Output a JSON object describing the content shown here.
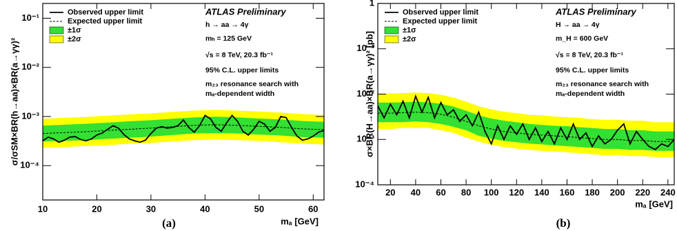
{
  "chart_data": [
    {
      "type": "line",
      "ylog": true,
      "xlim": [
        10,
        62
      ],
      "ylim": [
        2e-05,
        0.2
      ],
      "xticks": [
        10,
        20,
        30,
        40,
        50,
        60
      ],
      "yticks": [
        {
          "value": 0.0001,
          "label": "10⁻⁴"
        },
        {
          "value": 0.001,
          "label": "10⁻³"
        },
        {
          "value": 0.01,
          "label": "10⁻²"
        },
        {
          "value": 0.1,
          "label": "10⁻¹"
        }
      ],
      "xlabel": "mₐ [GeV]",
      "ylabel": "σ/σSM×BR(h→aa)×BR(a→γγ)²",
      "experiment": "ATLAS Preliminary",
      "annotations": [
        "h → aa → 4γ",
        "mₕ = 125 GeV",
        "√s = 8 TeV, 20.3 fb⁻¹",
        "95% C.L. upper limits",
        "m₂₃ resonance search with",
        "mₐ-dependent width"
      ],
      "caption": "(a)",
      "series": [
        {
          "name": "Observed upper limit",
          "style": "solid",
          "color": "#000000",
          "x": [
            10,
            11,
            12,
            13,
            14,
            15,
            16,
            17,
            18,
            19,
            20,
            21,
            22,
            23,
            24,
            25,
            26,
            27,
            28,
            29,
            30,
            31,
            32,
            33,
            34,
            35,
            36,
            37,
            38,
            39,
            40,
            41,
            42,
            43,
            44,
            45,
            46,
            47,
            48,
            49,
            50,
            51,
            52,
            53,
            54,
            55,
            56,
            57,
            58,
            59,
            60,
            61,
            62
          ],
          "values": [
            0.00032,
            0.00038,
            0.00035,
            0.0003,
            0.00033,
            0.00038,
            0.00039,
            0.00034,
            0.00032,
            0.00035,
            0.00042,
            0.00046,
            0.00055,
            0.00065,
            0.00058,
            0.00043,
            0.00035,
            0.00032,
            0.0003,
            0.00033,
            0.00045,
            0.00058,
            0.00062,
            0.00058,
            0.0006,
            0.00065,
            0.00085,
            0.0006,
            0.00048,
            0.00065,
            0.00105,
            0.0009,
            0.0006,
            0.0005,
            0.00075,
            0.00105,
            0.0008,
            0.0005,
            0.00042,
            0.00055,
            0.0008,
            0.0007,
            0.0005,
            0.0006,
            0.001,
            0.00095,
            0.0006,
            0.0004,
            0.00033,
            0.00035,
            0.0004,
            0.00048,
            0.00052
          ]
        },
        {
          "name": "Expected upper limit",
          "style": "dashed",
          "color": "#000000",
          "x": [
            10,
            14,
            18,
            22,
            26,
            30,
            34,
            38,
            42,
            46,
            50,
            54,
            58,
            62
          ],
          "values": [
            0.00045,
            0.00047,
            0.00049,
            0.00052,
            0.00055,
            0.00058,
            0.00062,
            0.00066,
            0.00068,
            0.00066,
            0.00063,
            0.0006,
            0.00056,
            0.00054
          ]
        },
        {
          "name": "±1σ",
          "style": "band",
          "color": "#33e033",
          "x": [
            10,
            14,
            18,
            22,
            26,
            30,
            34,
            38,
            42,
            46,
            50,
            54,
            58,
            62
          ],
          "lower": [
            0.00031,
            0.00032,
            0.00033,
            0.00035,
            0.00037,
            0.00039,
            0.00042,
            0.00045,
            0.00046,
            0.00045,
            0.00043,
            0.00041,
            0.00038,
            0.00037
          ],
          "values": [
            0.00065,
            0.00068,
            0.00071,
            0.00075,
            0.0008,
            0.00084,
            0.0009,
            0.00096,
            0.00099,
            0.00096,
            0.00091,
            0.00087,
            0.00081,
            0.00078
          ]
        },
        {
          "name": "±2σ",
          "style": "band",
          "color": "#ffff00",
          "x": [
            10,
            14,
            18,
            22,
            26,
            30,
            34,
            38,
            42,
            46,
            50,
            54,
            58,
            62
          ],
          "lower": [
            0.00023,
            0.00024,
            0.00025,
            0.00026,
            0.00028,
            0.00029,
            0.00031,
            0.00033,
            0.00034,
            0.00033,
            0.00032,
            0.0003,
            0.00028,
            0.00027
          ],
          "values": [
            0.0009,
            0.00094,
            0.00098,
            0.00104,
            0.0011,
            0.00116,
            0.00124,
            0.00132,
            0.00136,
            0.00132,
            0.00126,
            0.0012,
            0.00112,
            0.00108
          ]
        }
      ]
    },
    {
      "type": "line",
      "ylog": true,
      "xlim": [
        10,
        245
      ],
      "ylim": [
        0.0001,
        1
      ],
      "xticks": [
        20,
        40,
        60,
        80,
        100,
        120,
        140,
        160,
        180,
        200,
        220,
        240
      ],
      "yticks": [
        {
          "value": 0.0001,
          "label": "10⁻⁴"
        },
        {
          "value": 0.001,
          "label": "10⁻³"
        },
        {
          "value": 0.01,
          "label": "10⁻²"
        },
        {
          "value": 0.1,
          "label": "10⁻¹"
        },
        1
      ],
      "xlabel": "mₐ [GeV]",
      "ylabel": "σ×BR(H→aa)×BR(a→γγ)² [pb]",
      "experiment": "ATLAS Preliminary",
      "annotations": [
        "H → aa → 4γ",
        "m_H = 600 GeV",
        "√s = 8 TeV, 20.3 fb⁻¹",
        "95% C.L. upper limits",
        "m₂₃ resonance search with",
        "mₐ-dependent width"
      ],
      "caption": "(b)",
      "series": [
        {
          "name": "Observed upper limit",
          "style": "solid",
          "color": "#000000",
          "x": [
            10,
            15,
            20,
            25,
            30,
            35,
            40,
            45,
            50,
            55,
            60,
            65,
            70,
            75,
            80,
            85,
            90,
            95,
            100,
            105,
            110,
            115,
            120,
            125,
            130,
            135,
            140,
            145,
            150,
            155,
            160,
            165,
            170,
            175,
            180,
            185,
            190,
            195,
            200,
            205,
            210,
            215,
            220,
            225,
            230,
            235,
            240,
            245
          ],
          "values": [
            0.0055,
            0.003,
            0.006,
            0.0035,
            0.007,
            0.003,
            0.009,
            0.004,
            0.0085,
            0.003,
            0.0065,
            0.0035,
            0.0045,
            0.0025,
            0.0035,
            0.002,
            0.004,
            0.0015,
            0.0008,
            0.002,
            0.001,
            0.002,
            0.0013,
            0.0022,
            0.001,
            0.0018,
            0.0009,
            0.0015,
            0.0008,
            0.0018,
            0.001,
            0.0022,
            0.001,
            0.0014,
            0.0007,
            0.0012,
            0.0008,
            0.001,
            0.0016,
            0.0022,
            0.0008,
            0.0015,
            0.001,
            0.0007,
            0.0006,
            0.0008,
            0.0007,
            0.001
          ]
        },
        {
          "name": "Expected upper limit",
          "style": "dashed",
          "color": "#000000",
          "x": [
            10,
            20,
            30,
            40,
            50,
            60,
            70,
            80,
            90,
            100,
            110,
            120,
            130,
            140,
            150,
            160,
            170,
            180,
            190,
            200,
            210,
            220,
            230,
            240,
            245
          ],
          "values": [
            0.0038,
            0.0038,
            0.0039,
            0.004,
            0.0039,
            0.0036,
            0.0031,
            0.0025,
            0.002,
            0.0017,
            0.0015,
            0.0014,
            0.0013,
            0.00125,
            0.0012,
            0.00115,
            0.0011,
            0.00105,
            0.001,
            0.001,
            0.00095,
            0.00095,
            0.0009,
            0.0009,
            0.0009
          ]
        },
        {
          "name": "±1σ",
          "style": "band",
          "color": "#33e033",
          "x": [
            10,
            20,
            30,
            40,
            50,
            60,
            70,
            80,
            90,
            100,
            110,
            120,
            130,
            140,
            150,
            160,
            170,
            180,
            190,
            200,
            210,
            220,
            230,
            240,
            245
          ],
          "lower": [
            0.0024,
            0.0024,
            0.0024,
            0.0025,
            0.0024,
            0.0022,
            0.0019,
            0.0016,
            0.0012,
            0.00105,
            0.00093,
            0.00087,
            0.00081,
            0.00078,
            0.00074,
            0.00071,
            0.00068,
            0.00065,
            0.00062,
            0.00062,
            0.00059,
            0.00059,
            0.00056,
            0.00056,
            0.00056
          ],
          "values": [
            0.0065,
            0.0065,
            0.0066,
            0.0068,
            0.0066,
            0.0061,
            0.0053,
            0.0043,
            0.0034,
            0.0029,
            0.0026,
            0.0024,
            0.0022,
            0.0021,
            0.002,
            0.00196,
            0.00187,
            0.00179,
            0.0017,
            0.0017,
            0.0016,
            0.0016,
            0.0015,
            0.0015,
            0.0015
          ]
        },
        {
          "name": "±2σ",
          "style": "band",
          "color": "#ffff00",
          "x": [
            10,
            20,
            30,
            40,
            50,
            60,
            70,
            80,
            90,
            100,
            110,
            120,
            130,
            140,
            150,
            160,
            170,
            180,
            190,
            200,
            210,
            220,
            230,
            240,
            245
          ],
          "lower": [
            0.0017,
            0.0017,
            0.0018,
            0.0018,
            0.0018,
            0.0016,
            0.0014,
            0.0011,
            0.0009,
            0.00077,
            0.00068,
            0.00063,
            0.00059,
            0.00056,
            0.00054,
            0.00052,
            0.0005,
            0.00047,
            0.00045,
            0.00045,
            0.00043,
            0.00043,
            0.00041,
            0.00041,
            0.00041
          ],
          "values": [
            0.0103,
            0.0103,
            0.0105,
            0.0108,
            0.0105,
            0.0097,
            0.0084,
            0.0068,
            0.0054,
            0.0046,
            0.0041,
            0.0038,
            0.0035,
            0.0034,
            0.0032,
            0.0031,
            0.003,
            0.0028,
            0.0027,
            0.0027,
            0.0026,
            0.0026,
            0.0024,
            0.0024,
            0.0024
          ]
        }
      ]
    }
  ]
}
